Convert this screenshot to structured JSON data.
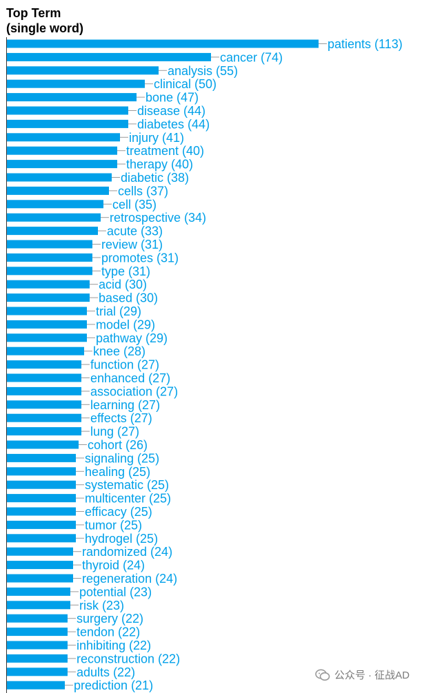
{
  "chart_data": {
    "type": "bar",
    "orientation": "horizontal",
    "title": "Top Term\n(single word)",
    "xlabel": "",
    "ylabel": "",
    "grid": false,
    "bar_color": "#00a0e9",
    "label_color": "#00a0e9",
    "categories": [
      "patients",
      "cancer",
      "analysis",
      "clinical",
      "bone",
      "disease",
      "diabetes",
      "injury",
      "treatment",
      "therapy",
      "diabetic",
      "cells",
      "cell",
      "retrospective",
      "acute",
      "review",
      "promotes",
      "type",
      "acid",
      "based",
      "trial",
      "model",
      "pathway",
      "knee",
      "function",
      "enhanced",
      "association",
      "learning",
      "effects",
      "lung",
      "cohort",
      "signaling",
      "healing",
      "systematic",
      "multicenter",
      "efficacy",
      "tumor",
      "hydrogel",
      "randomized",
      "thyroid",
      "regeneration",
      "potential",
      "risk",
      "surgery",
      "tendon",
      "inhibiting",
      "reconstruction",
      "adults",
      "prediction"
    ],
    "values": [
      113,
      74,
      55,
      50,
      47,
      44,
      44,
      41,
      40,
      40,
      38,
      37,
      35,
      34,
      33,
      31,
      31,
      31,
      30,
      30,
      29,
      29,
      29,
      28,
      27,
      27,
      27,
      27,
      27,
      27,
      26,
      25,
      25,
      25,
      25,
      25,
      25,
      25,
      24,
      24,
      24,
      23,
      23,
      22,
      22,
      22,
      22,
      22,
      21
    ],
    "data_labels": [
      "patients (113)",
      "cancer (74)",
      "analysis (55)",
      "clinical (50)",
      "bone (47)",
      "disease (44)",
      "diabetes (44)",
      "injury (41)",
      "treatment (40)",
      "therapy (40)",
      "diabetic (38)",
      "cells (37)",
      "cell (35)",
      "retrospective (34)",
      "acute (33)",
      "review (31)",
      "promotes (31)",
      "type (31)",
      "acid (30)",
      "based (30)",
      "trial (29)",
      "model (29)",
      "pathway (29)",
      "knee (28)",
      "function (27)",
      "enhanced (27)",
      "association (27)",
      "learning (27)",
      "effects (27)",
      "lung (27)",
      "cohort (26)",
      "signaling (25)",
      "healing (25)",
      "systematic (25)",
      "multicenter (25)",
      "efficacy (25)",
      "tumor (25)",
      "hydrogel (25)",
      "randomized (24)",
      "thyroid (24)",
      "regeneration (24)",
      "potential (23)",
      "risk (23)",
      "surgery (22)",
      "tendon (22)",
      "inhibiting (22)",
      "reconstruction (22)",
      "adults (22)",
      "prediction (21)"
    ]
  },
  "watermark": {
    "text": "公众号 · 征战AD",
    "icon": "wechat-icon"
  }
}
